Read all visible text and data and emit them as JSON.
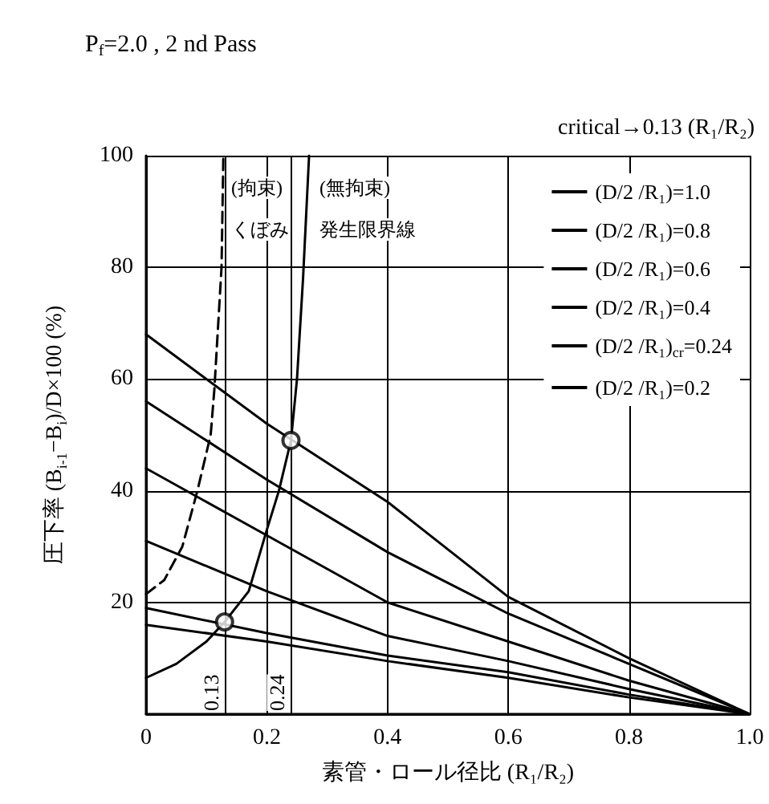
{
  "chart_data": {
    "type": "line",
    "title": "P$_{f}$=2.0 , 2 nd Pass",
    "xlabel": "素管・ロール径比 (R₁/R₂)",
    "ylabel": "圧下率 (B$_{i-1}$−B$_{i}$)/D×100 (%)",
    "xlim": [
      0,
      1
    ],
    "xticks": [
      0,
      {
        "value": 0.2,
        "label": "0.2"
      },
      {
        "value": 0.4,
        "label": "0.4"
      },
      {
        "value": 0.6,
        "label": "0.6"
      },
      {
        "value": 0.8,
        "label": "0.8"
      },
      {
        "value": 1,
        "label": "1.0"
      }
    ],
    "ylim": [
      0,
      100
    ],
    "yticks": [
      {
        "value": 0,
        "label": null
      },
      20,
      40,
      60,
      80,
      100
    ],
    "grid": true,
    "legend": "top right",
    "marker": "none",
    "line_style": "solid",
    "series": [
      {
        "name": "(D/2 /R₁)=1.0",
        "color": "#000000",
        "x": [
          0,
          0.2,
          0.4,
          0.6,
          0.8,
          1
        ],
        "values": [
          68,
          52,
          38,
          21,
          10,
          0
        ]
      },
      {
        "name": "(D/2 /R₁)=0.8",
        "color": "#000000",
        "x": [
          0,
          0.2,
          0.4,
          0.6,
          0.8,
          1
        ],
        "values": [
          56,
          42,
          29,
          18,
          9,
          0
        ]
      },
      {
        "name": "(D/2 /R₁)=0.6",
        "color": "#000000",
        "x": [
          0,
          0.2,
          0.4,
          0.6,
          0.8,
          1
        ],
        "values": [
          44,
          32,
          20,
          13,
          6,
          0
        ]
      },
      {
        "name": "(D/2 /R₁)=0.4",
        "color": "#000000",
        "x": [
          0,
          0.2,
          0.4,
          0.6,
          0.8,
          1
        ],
        "values": [
          31,
          22,
          14,
          9.5,
          4.5,
          0
        ]
      },
      {
        "name": "(D/2 /R₁)$_{cr}$=0.24",
        "color": "#000000",
        "x": [
          0,
          0.2,
          0.4,
          0.6,
          0.8,
          1
        ],
        "values": [
          19,
          14.5,
          10.5,
          7.5,
          3.5,
          0
        ]
      },
      {
        "name": "(D/2 /R₁)=0.2",
        "color": "#000000",
        "x": [
          0,
          0.2,
          0.4,
          0.6,
          0.8,
          1
        ],
        "values": [
          16,
          13,
          9.5,
          6.5,
          3,
          0
        ]
      },
      {
        "color": "#000000",
        "x": [
          0,
          0.05,
          0.1,
          0.13,
          0.17,
          0.2,
          0.22,
          0.24,
          0.25,
          0.26,
          0.27
        ],
        "values": [
          6.5,
          9,
          13,
          16.5,
          22,
          33,
          40,
          49,
          60,
          78,
          100
        ]
      },
      {
        "color": "#000000",
        "line_style": "dashed",
        "x": [
          0,
          0.03,
          0.06,
          0.085,
          0.107,
          0.113,
          0.125,
          0.128
        ],
        "values": [
          21.5,
          24,
          30,
          40,
          50,
          58,
          80,
          100
        ]
      },
      {
        "type": "scatter",
        "marker": "circle",
        "color": "#000000",
        "x": [
          0.13,
          0.24
        ],
        "values": [
          16.5,
          49
        ]
      }
    ],
    "ref_lines": [
      {
        "axis": "x",
        "value": 0.13,
        "label": "0.13"
      },
      {
        "axis": "x",
        "value": 0.24,
        "label": "0.24"
      }
    ],
    "annotations": [
      "(拘束)",
      "(無拘束)",
      "くぼみ",
      "発生限界線",
      "critical→0.13 (R₁/R₂)"
    ]
  }
}
